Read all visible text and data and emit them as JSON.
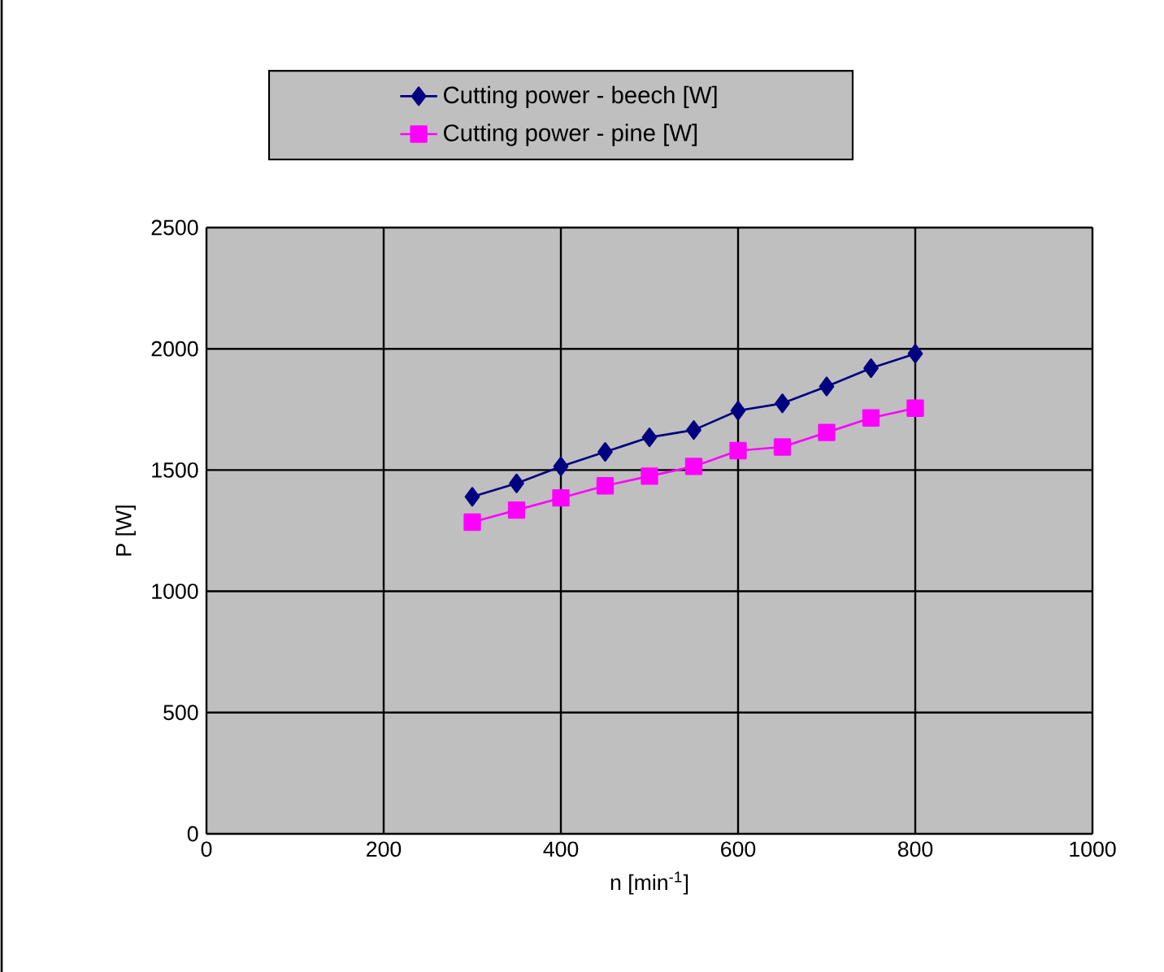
{
  "chart_data": {
    "type": "line",
    "xlabel": "n [min$^{-1}$]",
    "ylabel": "P [W]",
    "x": [
      300,
      350,
      400,
      450,
      500,
      550,
      600,
      650,
      700,
      750,
      800
    ],
    "series": [
      {
        "name": "Cutting power - beech [W]",
        "color": "#000080",
        "marker": "diamond",
        "values": [
          1390,
          1445,
          1515,
          1575,
          1635,
          1665,
          1745,
          1775,
          1845,
          1920,
          1980
        ]
      },
      {
        "name": "Cutting power - pine [W]",
        "color": "#ff00ff",
        "marker": "square",
        "values": [
          1285,
          1335,
          1385,
          1435,
          1475,
          1515,
          1580,
          1595,
          1655,
          1715,
          1755
        ]
      }
    ],
    "xlim": [
      0,
      1000
    ],
    "ylim": [
      0,
      2500
    ],
    "xticks": [
      0,
      200,
      400,
      600,
      800,
      1000
    ],
    "yticks": [
      0,
      500,
      1000,
      1500,
      2000,
      2500
    ],
    "grid": true,
    "legend": "top",
    "line_style": "solid"
  }
}
